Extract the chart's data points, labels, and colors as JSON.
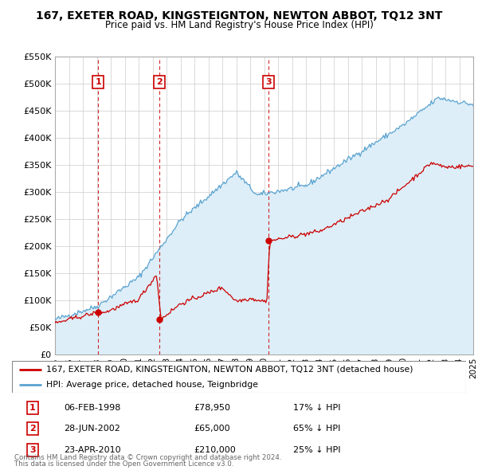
{
  "title": "167, EXETER ROAD, KINGSTEIGNTON, NEWTON ABBOT, TQ12 3NT",
  "subtitle": "Price paid vs. HM Land Registry's House Price Index (HPI)",
  "sales": [
    {
      "num": 1,
      "date_label": "06-FEB-1998",
      "date_x": 1998.09,
      "price": 78950,
      "pct": "17%",
      "dir": "↓"
    },
    {
      "num": 2,
      "date_label": "28-JUN-2002",
      "date_x": 2002.49,
      "price": 65000,
      "pct": "65%",
      "dir": "↓"
    },
    {
      "num": 3,
      "date_label": "23-APR-2010",
      "date_x": 2010.31,
      "price": 210000,
      "pct": "25%",
      "dir": "↓"
    }
  ],
  "legend_line1": "167, EXETER ROAD, KINGSTEIGNTON, NEWTON ABBOT, TQ12 3NT (detached house)",
  "legend_line2": "HPI: Average price, detached house, Teignbridge",
  "footer1": "Contains HM Land Registry data © Crown copyright and database right 2024.",
  "footer2": "This data is licensed under the Open Government Licence v3.0.",
  "hpi_color": "#5ba3d0",
  "hpi_fill": "#ddeef8",
  "price_color": "#cc0000",
  "vline_color": "#cc0000",
  "ylim_max": 550000,
  "ylim_min": 0,
  "xmin": 1995,
  "xmax": 2025
}
